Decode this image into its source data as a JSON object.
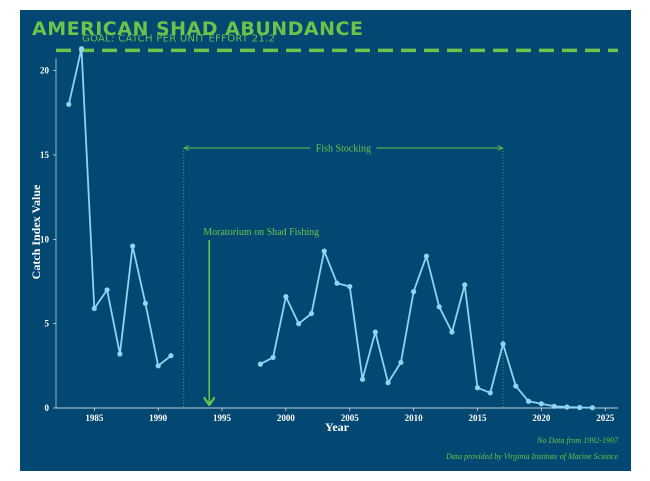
{
  "title": "AMERICAN SHAD ABUNDANCE",
  "colors": {
    "background": "#024872",
    "accent": "#6cc24a",
    "line": "#8fd3f5",
    "text": "#ffffff"
  },
  "footnotes": {
    "no_data": "No Data from 1992-1997",
    "source": "Data provided by Virginia Institute of Marine Science"
  },
  "chart_data": {
    "type": "line",
    "title": "AMERICAN SHAD ABUNDANCE",
    "xlabel": "Year",
    "ylabel": "Catch Index Value",
    "xlim": [
      1982,
      2026
    ],
    "ylim": [
      0,
      23
    ],
    "xticks": [
      1985,
      1990,
      1995,
      2000,
      2005,
      2010,
      2015,
      2020,
      2025
    ],
    "yticks": [
      0,
      5,
      10,
      15,
      20
    ],
    "grid": false,
    "series": [
      {
        "name": "Catch Index Value",
        "segments": [
          {
            "x": [
              1983,
              1984,
              1985,
              1986,
              1987,
              1988,
              1989,
              1990,
              1991
            ],
            "y": [
              18.0,
              21.3,
              5.9,
              7.0,
              3.2,
              9.6,
              6.2,
              2.5,
              3.1
            ]
          },
          {
            "x": [
              1998,
              1999,
              2000,
              2001,
              2002,
              2003,
              2004,
              2005,
              2006,
              2007,
              2008,
              2009,
              2010,
              2011,
              2012,
              2013,
              2014,
              2015,
              2016,
              2017,
              2018,
              2019,
              2020,
              2021,
              2022,
              2023,
              2024
            ],
            "y": [
              2.6,
              3.0,
              6.6,
              5.0,
              5.6,
              9.3,
              7.4,
              7.2,
              1.7,
              4.5,
              1.5,
              2.7,
              6.9,
              9.0,
              6.0,
              4.5,
              7.3,
              1.2,
              0.9,
              3.8,
              1.3,
              0.4,
              0.25,
              0.1,
              0.06,
              0.03,
              0.02
            ]
          }
        ]
      }
    ],
    "reference_lines": [
      {
        "label": "GOAL: CATCH PER UNIT EFFORT 21.2",
        "y": 21.2,
        "style": "dashed"
      }
    ],
    "annotations": [
      {
        "label": "Fish Stocking",
        "x_start": 1992,
        "x_end": 2017,
        "type": "span"
      },
      {
        "label": "Moratorium on Shad Fishing",
        "x": 1994,
        "type": "arrow"
      }
    ]
  }
}
